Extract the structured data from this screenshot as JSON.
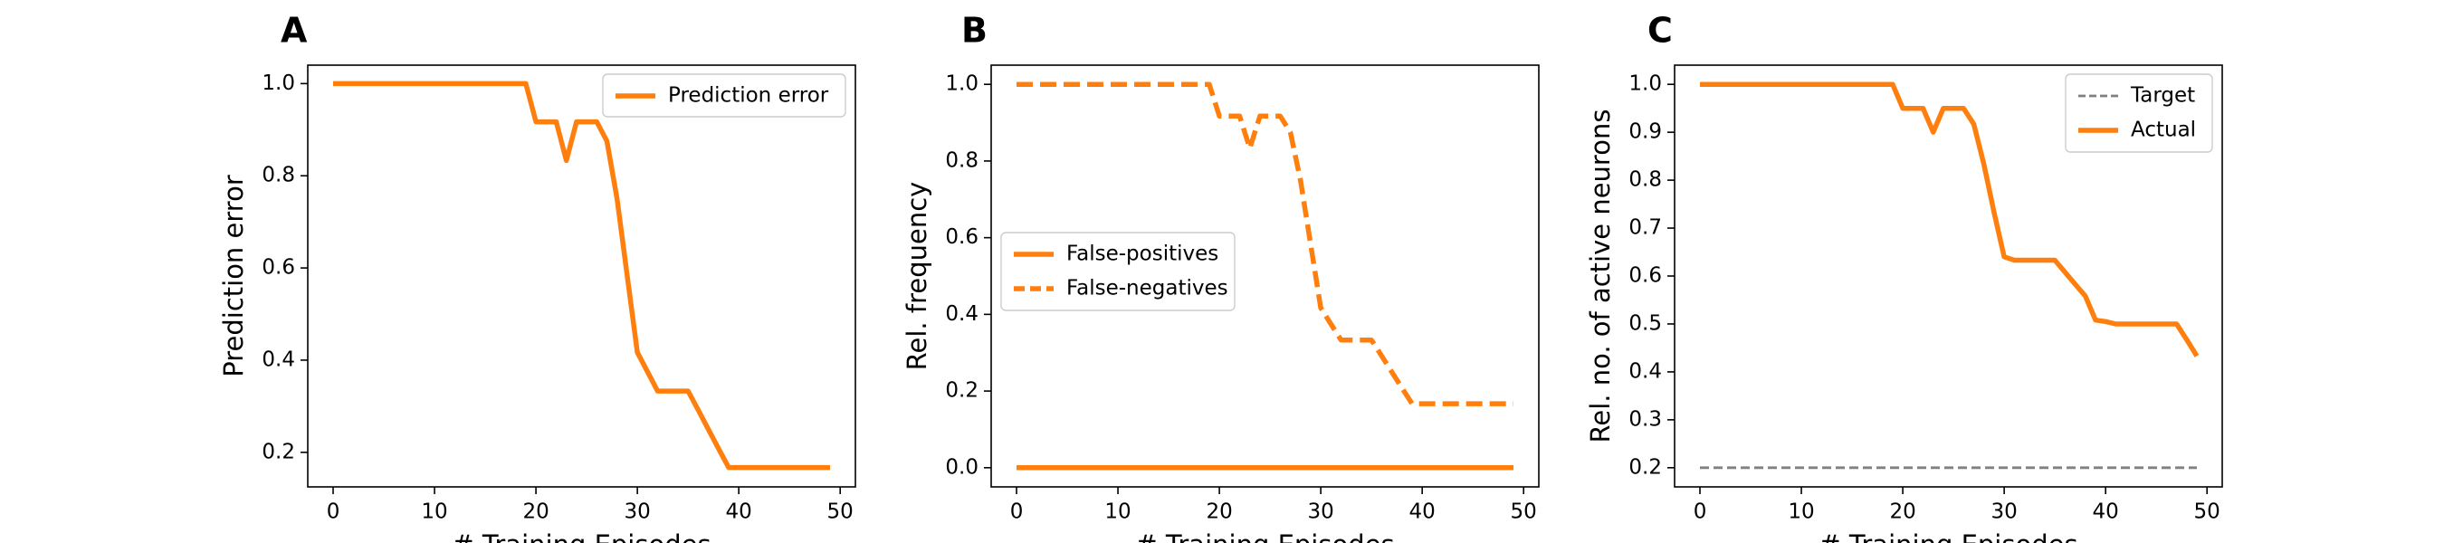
{
  "chart_data": [
    {
      "panel_label": "A",
      "type": "line",
      "xlabel": "# Training Episodes",
      "ylabel": "Prediction error",
      "xlim": [
        -2.5,
        51.5
      ],
      "ylim": [
        0.125,
        1.04
      ],
      "xticks": [
        0,
        10,
        20,
        30,
        40,
        50
      ],
      "yticks": [
        0.2,
        0.4,
        0.6,
        0.8,
        1.0
      ],
      "ytick_labels": [
        "0.2",
        "0.4",
        "0.6",
        "0.8",
        "1.0"
      ],
      "legend_position": "upper right",
      "series": [
        {
          "name": "Prediction error",
          "color": "#ff7f0e",
          "style": "solid",
          "x": [
            0,
            1,
            2,
            3,
            4,
            5,
            6,
            7,
            8,
            9,
            10,
            11,
            12,
            13,
            14,
            15,
            16,
            17,
            18,
            19,
            20,
            21,
            22,
            23,
            24,
            25,
            26,
            27,
            28,
            29,
            30,
            31,
            32,
            33,
            34,
            35,
            36,
            37,
            38,
            39,
            40,
            41,
            42,
            43,
            44,
            45,
            46,
            47,
            48,
            49
          ],
          "y": [
            1.0,
            1.0,
            1.0,
            1.0,
            1.0,
            1.0,
            1.0,
            1.0,
            1.0,
            1.0,
            1.0,
            1.0,
            1.0,
            1.0,
            1.0,
            1.0,
            1.0,
            1.0,
            1.0,
            1.0,
            0.917,
            0.917,
            0.917,
            0.833,
            0.917,
            0.917,
            0.917,
            0.875,
            0.75,
            0.583,
            0.417,
            0.375,
            0.333,
            0.333,
            0.333,
            0.333,
            0.292,
            0.25,
            0.208,
            0.167,
            0.167,
            0.167,
            0.167,
            0.167,
            0.167,
            0.167,
            0.167,
            0.167,
            0.167,
            0.167
          ]
        }
      ]
    },
    {
      "panel_label": "B",
      "type": "line",
      "xlabel": "# Training Episodes",
      "ylabel": "Rel. frequency",
      "xlim": [
        -2.5,
        51.5
      ],
      "ylim": [
        -0.05,
        1.05
      ],
      "xticks": [
        0,
        10,
        20,
        30,
        40,
        50
      ],
      "yticks": [
        0.0,
        0.2,
        0.4,
        0.6,
        0.8,
        1.0
      ],
      "ytick_labels": [
        "0.0",
        "0.2",
        "0.4",
        "0.6",
        "0.8",
        "1.0"
      ],
      "legend_position": "center left",
      "series": [
        {
          "name": "False-positives",
          "color": "#ff7f0e",
          "style": "solid",
          "x": [
            0,
            49
          ],
          "y": [
            0.0,
            0.0
          ]
        },
        {
          "name": "False-negatives",
          "color": "#ff7f0e",
          "style": "dashed",
          "x": [
            0,
            1,
            2,
            3,
            4,
            5,
            6,
            7,
            8,
            9,
            10,
            11,
            12,
            13,
            14,
            15,
            16,
            17,
            18,
            19,
            20,
            21,
            22,
            23,
            24,
            25,
            26,
            27,
            28,
            29,
            30,
            31,
            32,
            33,
            34,
            35,
            36,
            37,
            38,
            39,
            40,
            41,
            42,
            43,
            44,
            45,
            46,
            47,
            48,
            49
          ],
          "y": [
            1.0,
            1.0,
            1.0,
            1.0,
            1.0,
            1.0,
            1.0,
            1.0,
            1.0,
            1.0,
            1.0,
            1.0,
            1.0,
            1.0,
            1.0,
            1.0,
            1.0,
            1.0,
            1.0,
            1.0,
            0.917,
            0.917,
            0.917,
            0.833,
            0.917,
            0.917,
            0.917,
            0.875,
            0.75,
            0.583,
            0.417,
            0.375,
            0.333,
            0.333,
            0.333,
            0.333,
            0.292,
            0.25,
            0.208,
            0.167,
            0.167,
            0.167,
            0.167,
            0.167,
            0.167,
            0.167,
            0.167,
            0.167,
            0.167,
            0.167
          ]
        }
      ]
    },
    {
      "panel_label": "C",
      "type": "line",
      "xlabel": "# Training Episodes",
      "ylabel": "Rel. no. of active neurons",
      "xlim": [
        -2.5,
        51.5
      ],
      "ylim": [
        0.16,
        1.04
      ],
      "xticks": [
        0,
        10,
        20,
        30,
        40,
        50
      ],
      "yticks": [
        0.2,
        0.3,
        0.4,
        0.5,
        0.6,
        0.7,
        0.8,
        0.9,
        1.0
      ],
      "ytick_labels": [
        "0.2",
        "0.3",
        "0.4",
        "0.5",
        "0.6",
        "0.7",
        "0.8",
        "0.9",
        "1.0"
      ],
      "legend_position": "upper right",
      "series": [
        {
          "name": "Target",
          "color": "#808080",
          "style": "dashed-thin",
          "x": [
            0,
            49
          ],
          "y": [
            0.2,
            0.2
          ]
        },
        {
          "name": "Actual",
          "color": "#ff7f0e",
          "style": "solid",
          "x": [
            0,
            1,
            2,
            3,
            4,
            5,
            6,
            7,
            8,
            9,
            10,
            11,
            12,
            13,
            14,
            15,
            16,
            17,
            18,
            19,
            20,
            21,
            22,
            23,
            24,
            25,
            26,
            27,
            28,
            29,
            30,
            31,
            32,
            33,
            34,
            35,
            36,
            37,
            38,
            39,
            40,
            41,
            42,
            43,
            44,
            45,
            46,
            47,
            48,
            49
          ],
          "y": [
            1.0,
            1.0,
            1.0,
            1.0,
            1.0,
            1.0,
            1.0,
            1.0,
            1.0,
            1.0,
            1.0,
            1.0,
            1.0,
            1.0,
            1.0,
            1.0,
            1.0,
            1.0,
            1.0,
            1.0,
            0.95,
            0.95,
            0.95,
            0.9,
            0.95,
            0.95,
            0.95,
            0.917,
            0.833,
            0.733,
            0.64,
            0.633,
            0.633,
            0.633,
            0.633,
            0.633,
            0.608,
            0.583,
            0.558,
            0.508,
            0.505,
            0.5,
            0.5,
            0.5,
            0.5,
            0.5,
            0.5,
            0.5,
            0.467,
            0.433
          ]
        }
      ]
    }
  ]
}
